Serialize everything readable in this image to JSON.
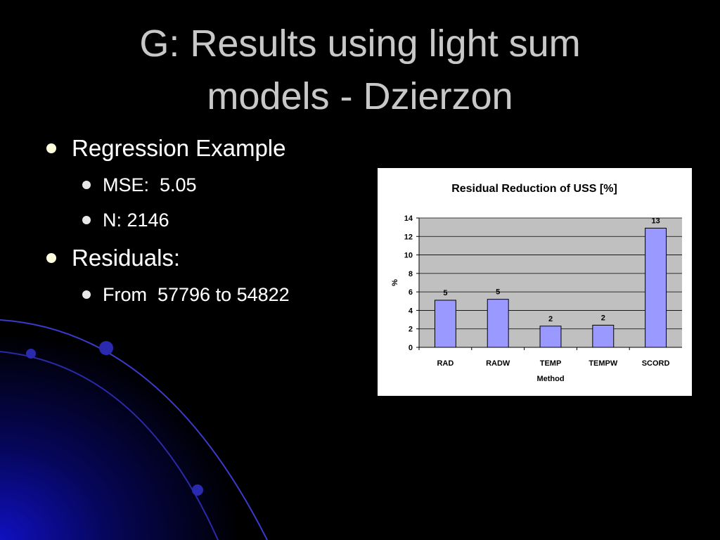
{
  "slide": {
    "title_lines": [
      "G: Results using light sum",
      "models - Dzierzon"
    ],
    "bullets": [
      {
        "text": "Regression Example",
        "sub": [
          "MSE:  5.05",
          "N: 2146"
        ]
      },
      {
        "text": "Residuals:",
        "sub": [
          "From  57796 to 54822"
        ]
      }
    ]
  },
  "chart_data": {
    "type": "bar",
    "title": "Residual Reduction of USS [%]",
    "x_label": "Method",
    "y_label": "%",
    "categories": [
      "RAD",
      "RADW",
      "TEMP",
      "TEMPW",
      "SCORD"
    ],
    "values": [
      5.1,
      5.2,
      2.3,
      2.4,
      12.9
    ],
    "value_labels": [
      "5",
      "5",
      "2",
      "2",
      "13"
    ],
    "color": "#9999ff",
    "ylim": [
      0,
      14
    ],
    "yticks": [
      0,
      2,
      4,
      6,
      8,
      10,
      12,
      14
    ],
    "grid": true
  }
}
